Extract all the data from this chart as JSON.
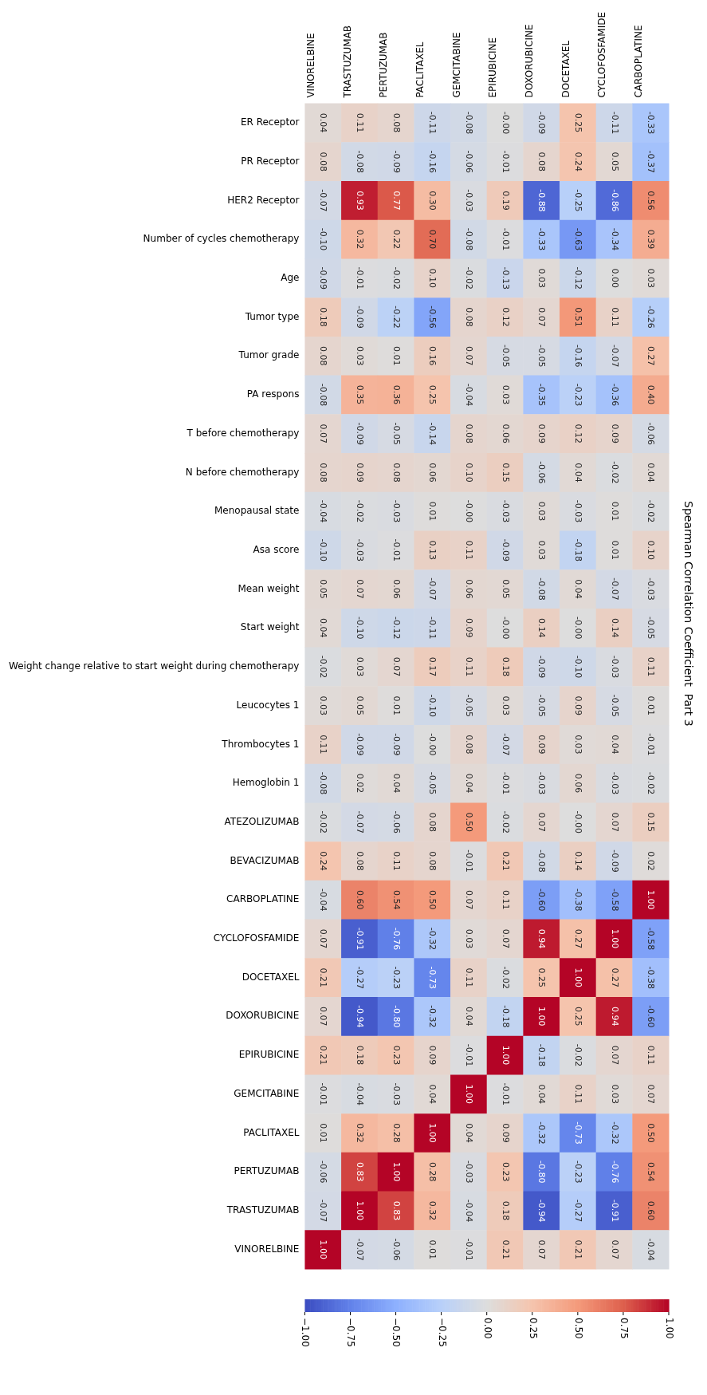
{
  "chart_data": {
    "type": "heatmap",
    "title": "Spearman Correlation Coefficient  Part 3",
    "categories": [
      "VINORELBINE",
      "TRASTUZUMAB",
      "PERTUZUMAB",
      "PACLITAXEL",
      "GEMCITABINE",
      "EPIRUBICINE",
      "DOXORUBICINE",
      "DOCETAXEL",
      "CYCLOFOSFAMIDE",
      "CARBOPLATINE"
    ],
    "y_categories": [
      "ER Receptor",
      "PR Receptor",
      "HER2 Receptor",
      "Number of cycles chemotherapy",
      "Age",
      "Tumor type",
      "Tumor grade",
      "PA respons",
      "T before chemotherapy",
      "N before chemotherapy",
      "Menopausal state",
      "Asa score",
      "Mean weight",
      "Start weight",
      "Weight change relative to start weight during chemotherapy",
      "Leucocytes 1",
      "Thrombocytes 1",
      "Hemoglobin 1",
      "ATEZOLIZUMAB",
      "BEVACIZUMAB",
      "CARBOPLATINE",
      "CYCLOFOSFAMIDE",
      "DOCETAXEL",
      "DOXORUBICINE",
      "EPIRUBICINE",
      "GEMCITABINE",
      "PACLITAXEL",
      "PERTUZUMAB",
      "TRASTUZUMAB",
      "VINORELBINE"
    ],
    "cells": [
      [
        0.04,
        0.11,
        0.08,
        -0.11,
        -0.08,
        0.0,
        -0.09,
        0.25,
        -0.11,
        -0.33
      ],
      [
        0.08,
        -0.08,
        -0.09,
        -0.16,
        -0.06,
        -0.01,
        0.08,
        0.24,
        0.05,
        -0.37
      ],
      [
        -0.07,
        0.93,
        0.77,
        0.3,
        -0.03,
        0.19,
        -0.88,
        -0.25,
        -0.86,
        0.56
      ],
      [
        -0.1,
        0.32,
        0.22,
        0.7,
        -0.08,
        -0.01,
        -0.33,
        -0.63,
        -0.34,
        0.39
      ],
      [
        -0.09,
        -0.01,
        -0.02,
        0.1,
        -0.02,
        -0.13,
        0.03,
        -0.12,
        0.0,
        0.03
      ],
      [
        0.18,
        -0.09,
        -0.22,
        -0.56,
        0.08,
        0.12,
        0.07,
        0.51,
        0.11,
        -0.26
      ],
      [
        0.08,
        0.03,
        0.01,
        0.16,
        0.07,
        -0.05,
        -0.05,
        -0.16,
        -0.07,
        0.27
      ],
      [
        -0.08,
        0.35,
        0.36,
        0.25,
        -0.04,
        0.03,
        -0.35,
        -0.23,
        -0.36,
        0.4
      ],
      [
        0.07,
        -0.09,
        -0.05,
        -0.14,
        0.08,
        0.06,
        0.09,
        0.12,
        0.09,
        -0.06
      ],
      [
        0.08,
        0.09,
        0.08,
        0.06,
        0.1,
        0.15,
        -0.06,
        0.04,
        -0.02,
        0.04
      ],
      [
        -0.04,
        -0.02,
        -0.03,
        0.01,
        0.0,
        -0.03,
        0.03,
        -0.03,
        0.01,
        -0.02
      ],
      [
        -0.1,
        -0.03,
        -0.01,
        0.13,
        0.11,
        -0.09,
        0.03,
        -0.18,
        0.01,
        0.1
      ],
      [
        0.05,
        0.07,
        0.06,
        -0.07,
        0.06,
        0.05,
        -0.08,
        0.04,
        -0.07,
        -0.03
      ],
      [
        0.04,
        -0.1,
        -0.12,
        -0.11,
        0.09,
        0.0,
        0.14,
        0.0,
        0.14,
        -0.05
      ],
      [
        -0.02,
        0.03,
        0.07,
        0.17,
        0.11,
        0.18,
        -0.09,
        -0.1,
        -0.03,
        0.11
      ],
      [
        0.03,
        0.05,
        0.01,
        -0.1,
        -0.05,
        0.03,
        -0.05,
        0.09,
        -0.05,
        0.01
      ],
      [
        0.11,
        -0.09,
        -0.09,
        0.0,
        0.08,
        -0.07,
        0.09,
        0.03,
        0.04,
        -0.01
      ],
      [
        -0.08,
        0.02,
        0.04,
        -0.05,
        0.04,
        -0.01,
        -0.03,
        0.06,
        -0.03,
        -0.02
      ],
      [
        -0.02,
        -0.07,
        -0.06,
        0.08,
        0.5,
        -0.02,
        0.07,
        0.0,
        0.07,
        0.15
      ],
      [
        0.24,
        0.08,
        0.11,
        0.08,
        -0.01,
        0.21,
        -0.08,
        0.14,
        -0.09,
        0.02
      ],
      [
        -0.04,
        0.6,
        0.54,
        0.5,
        0.07,
        0.11,
        -0.6,
        -0.38,
        -0.58,
        1.0
      ],
      [
        0.07,
        -0.91,
        -0.76,
        -0.32,
        0.03,
        0.07,
        0.94,
        0.27,
        1.0,
        -0.58
      ],
      [
        0.21,
        -0.27,
        -0.23,
        -0.73,
        0.11,
        -0.02,
        0.25,
        1.0,
        0.27,
        -0.38
      ],
      [
        0.07,
        -0.94,
        -0.8,
        -0.32,
        0.04,
        -0.18,
        1.0,
        0.25,
        0.94,
        -0.6
      ],
      [
        0.21,
        0.18,
        0.23,
        0.09,
        -0.01,
        1.0,
        -0.18,
        -0.02,
        0.07,
        0.11
      ],
      [
        -0.01,
        -0.04,
        -0.03,
        0.04,
        1.0,
        -0.01,
        0.04,
        0.11,
        0.03,
        0.07
      ],
      [
        0.01,
        0.32,
        0.28,
        1.0,
        0.04,
        0.09,
        -0.32,
        -0.73,
        -0.32,
        0.5
      ],
      [
        -0.06,
        0.83,
        1.0,
        0.28,
        -0.03,
        0.23,
        -0.8,
        -0.23,
        -0.76,
        0.54
      ],
      [
        -0.07,
        1.0,
        0.83,
        0.32,
        -0.04,
        0.18,
        -0.94,
        -0.27,
        -0.91,
        0.6
      ],
      [
        1.0,
        -0.07,
        -0.06,
        0.01,
        -0.01,
        0.21,
        0.07,
        0.21,
        0.07,
        -0.04
      ]
    ],
    "cell_labels": [
      [
        "0.04",
        "0.11",
        "0.08",
        "-0.11",
        "-0.08",
        "-0.00",
        "-0.09",
        "0.25",
        "-0.11",
        "-0.33"
      ],
      [
        "0.08",
        "-0.08",
        "-0.09",
        "-0.16",
        "-0.06",
        "-0.01",
        "0.08",
        "0.24",
        "0.05",
        "-0.37"
      ],
      [
        "-0.07",
        "0.93",
        "0.77",
        "0.30",
        "-0.03",
        "0.19",
        "-0.88",
        "-0.25",
        "-0.86",
        "0.56"
      ],
      [
        "-0.10",
        "0.32",
        "0.22",
        "0.70",
        "-0.08",
        "-0.01",
        "-0.33",
        "-0.63",
        "-0.34",
        "0.39"
      ],
      [
        "-0.09",
        "-0.01",
        "-0.02",
        "0.10",
        "-0.02",
        "-0.13",
        "0.03",
        "-0.12",
        "0.00",
        "0.03"
      ],
      [
        "0.18",
        "-0.09",
        "-0.22",
        "-0.56",
        "0.08",
        "0.12",
        "0.07",
        "0.51",
        "0.11",
        "-0.26"
      ],
      [
        "0.08",
        "0.03",
        "0.01",
        "0.16",
        "0.07",
        "-0.05",
        "-0.05",
        "-0.16",
        "-0.07",
        "0.27"
      ],
      [
        "-0.08",
        "0.35",
        "0.36",
        "0.25",
        "-0.04",
        "0.03",
        "-0.35",
        "-0.23",
        "-0.36",
        "0.40"
      ],
      [
        "0.07",
        "-0.09",
        "-0.05",
        "-0.14",
        "0.08",
        "0.06",
        "0.09",
        "0.12",
        "0.09",
        "-0.06"
      ],
      [
        "0.08",
        "0.09",
        "0.08",
        "0.06",
        "0.10",
        "0.15",
        "-0.06",
        "0.04",
        "-0.02",
        "0.04"
      ],
      [
        "-0.04",
        "-0.02",
        "-0.03",
        "0.01",
        "-0.00",
        "-0.03",
        "0.03",
        "-0.03",
        "0.01",
        "-0.02"
      ],
      [
        "-0.10",
        "-0.03",
        "-0.01",
        "0.13",
        "0.11",
        "-0.09",
        "0.03",
        "-0.18",
        "0.01",
        "0.10"
      ],
      [
        "0.05",
        "0.07",
        "0.06",
        "-0.07",
        "0.06",
        "0.05",
        "-0.08",
        "0.04",
        "-0.07",
        "-0.03"
      ],
      [
        "0.04",
        "-0.10",
        "-0.12",
        "-0.11",
        "0.09",
        "-0.00",
        "0.14",
        "-0.00",
        "0.14",
        "-0.05"
      ],
      [
        "-0.02",
        "0.03",
        "0.07",
        "0.17",
        "0.11",
        "0.18",
        "-0.09",
        "-0.10",
        "-0.03",
        "0.11"
      ],
      [
        "0.03",
        "0.05",
        "0.01",
        "-0.10",
        "-0.05",
        "0.03",
        "-0.05",
        "0.09",
        "-0.05",
        "0.01"
      ],
      [
        "0.11",
        "-0.09",
        "-0.09",
        "-0.00",
        "0.08",
        "-0.07",
        "0.09",
        "0.03",
        "0.04",
        "-0.01"
      ],
      [
        "-0.08",
        "0.02",
        "0.04",
        "-0.05",
        "0.04",
        "-0.01",
        "-0.03",
        "0.06",
        "-0.03",
        "-0.02"
      ],
      [
        "-0.02",
        "-0.07",
        "-0.06",
        "0.08",
        "0.50",
        "-0.02",
        "0.07",
        "-0.00",
        "0.07",
        "0.15"
      ],
      [
        "0.24",
        "0.08",
        "0.11",
        "0.08",
        "-0.01",
        "0.21",
        "-0.08",
        "0.14",
        "-0.09",
        "0.02"
      ],
      [
        "-0.04",
        "0.60",
        "0.54",
        "0.50",
        "0.07",
        "0.11",
        "-0.60",
        "-0.38",
        "-0.58",
        "1.00"
      ],
      [
        "0.07",
        "-0.91",
        "-0.76",
        "-0.32",
        "0.03",
        "0.07",
        "0.94",
        "0.27",
        "1.00",
        "-0.58"
      ],
      [
        "0.21",
        "-0.27",
        "-0.23",
        "-0.73",
        "0.11",
        "-0.02",
        "0.25",
        "1.00",
        "0.27",
        "-0.38"
      ],
      [
        "0.07",
        "-0.94",
        "-0.80",
        "-0.32",
        "0.04",
        "-0.18",
        "1.00",
        "0.25",
        "0.94",
        "-0.60"
      ],
      [
        "0.21",
        "0.18",
        "0.23",
        "0.09",
        "-0.01",
        "1.00",
        "-0.18",
        "-0.02",
        "0.07",
        "0.11"
      ],
      [
        "-0.01",
        "-0.04",
        "-0.03",
        "0.04",
        "1.00",
        "-0.01",
        "0.04",
        "0.11",
        "0.03",
        "0.07"
      ],
      [
        "0.01",
        "0.32",
        "0.28",
        "1.00",
        "0.04",
        "0.09",
        "-0.32",
        "-0.73",
        "-0.32",
        "0.50"
      ],
      [
        "-0.06",
        "0.83",
        "1.00",
        "0.28",
        "-0.03",
        "0.23",
        "-0.80",
        "-0.23",
        "-0.76",
        "0.54"
      ],
      [
        "-0.07",
        "1.00",
        "0.83",
        "0.32",
        "-0.04",
        "0.18",
        "-0.94",
        "-0.27",
        "-0.91",
        "0.60"
      ],
      [
        "1.00",
        "-0.07",
        "-0.06",
        "0.01",
        "-0.01",
        "0.21",
        "0.07",
        "0.21",
        "0.07",
        "-0.04"
      ]
    ],
    "clim": [
      -1,
      1
    ],
    "cticks": [
      {
        "value": -1,
        "label": "−1.00"
      },
      {
        "value": -0.75,
        "label": "−0.75"
      },
      {
        "value": -0.5,
        "label": "−0.50"
      },
      {
        "value": -0.25,
        "label": "−0.25"
      },
      {
        "value": 0,
        "label": "0.00"
      },
      {
        "value": 0.25,
        "label": "0.25"
      },
      {
        "value": 0.5,
        "label": "0.50"
      },
      {
        "value": 0.75,
        "label": "0.75"
      },
      {
        "value": 1,
        "label": "1.00"
      }
    ]
  }
}
